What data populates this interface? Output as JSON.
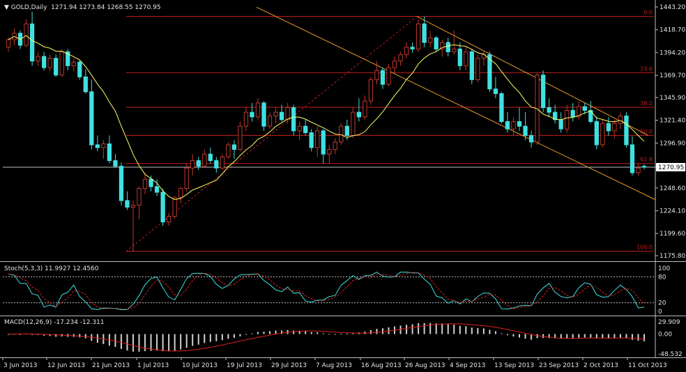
{
  "header": {
    "symbol": "GOLD,Daily",
    "ohlc": "1271.94 1273.84 1268.55 1270.95",
    "stoch_label": "Stoch(5,3,3) 11.9927 12.4560",
    "macd_label": "MACD(12,26,9) -17.234 -12.311"
  },
  "colors": {
    "background": "#000000",
    "bull_candle": "#000000",
    "bull_outline": "#c0392b",
    "bear_candle": "#40e0e0",
    "ma_line": "#ffff66",
    "fib": "#c81e1e",
    "channel": "#e69b2d",
    "stoch_main": "#40e0e0",
    "stoch_signal": "#e02020",
    "macd_hist": "#d0d0d0",
    "macd_signal": "#e02020"
  },
  "chart_data": [
    {
      "type": "candlestick",
      "name": "GOLD,Daily",
      "current_price": "1270.95",
      "ylim": [
        1175.8,
        1443.2
      ],
      "y_ticks": [
        "1443.20",
        "1418.70",
        "1394.20",
        "1369.70",
        "1345.90",
        "1321.40",
        "1296.90",
        "1270.95",
        "1248.60",
        "1224.10",
        "1199.60",
        "1175.80"
      ],
      "x_ticks": [
        "3 Jun 2013",
        "12 Jun 2013",
        "21 Jun 2013",
        "1 Jul 2013",
        "10 Jul 2013",
        "19 Jul 2013",
        "29 Jul 2013",
        "7 Aug 2013",
        "16 Aug 2013",
        "26 Aug 2013",
        "4 Sep 2013",
        "13 Sep 2013",
        "23 Sep 2013",
        "2 Oct 2013",
        "11 Oct 2013"
      ],
      "fibonacci": [
        {
          "label": "0.0",
          "price": 1433.0
        },
        {
          "label": "23.6",
          "price": 1372.6
        },
        {
          "label": "38.2",
          "price": 1335.3
        },
        {
          "label": "50.0",
          "price": 1305.1
        },
        {
          "label": "61.8",
          "price": 1274.9
        },
        {
          "label": "100.0",
          "price": 1180.5
        }
      ],
      "candles": [
        [
          1400,
          1410,
          1395,
          1408
        ],
        [
          1408,
          1420,
          1402,
          1415
        ],
        [
          1415,
          1418,
          1398,
          1402
        ],
        [
          1402,
          1430,
          1400,
          1425
        ],
        [
          1425,
          1438,
          1380,
          1385
        ],
        [
          1385,
          1395,
          1380,
          1390
        ],
        [
          1390,
          1395,
          1375,
          1378
        ],
        [
          1378,
          1392,
          1374,
          1388
        ],
        [
          1388,
          1392,
          1368,
          1370
        ],
        [
          1370,
          1398,
          1368,
          1395
        ],
        [
          1395,
          1398,
          1375,
          1380
        ],
        [
          1380,
          1388,
          1374,
          1384
        ],
        [
          1384,
          1386,
          1365,
          1368
        ],
        [
          1368,
          1376,
          1350,
          1352
        ],
        [
          1352,
          1365,
          1290,
          1295
        ],
        [
          1295,
          1305,
          1288,
          1292
        ],
        [
          1292,
          1300,
          1280,
          1296
        ],
        [
          1296,
          1305,
          1275,
          1278
        ],
        [
          1278,
          1285,
          1270,
          1272
        ],
        [
          1272,
          1276,
          1230,
          1235
        ],
        [
          1235,
          1245,
          1225,
          1228
        ],
        [
          1228,
          1235,
          1180,
          1230
        ],
        [
          1230,
          1250,
          1215,
          1248
        ],
        [
          1248,
          1265,
          1242,
          1258
        ],
        [
          1258,
          1262,
          1245,
          1250
        ],
        [
          1250,
          1258,
          1240,
          1244
        ],
        [
          1244,
          1248,
          1208,
          1212
        ],
        [
          1212,
          1222,
          1208,
          1218
        ],
        [
          1218,
          1240,
          1215,
          1238
        ],
        [
          1238,
          1250,
          1232,
          1248
        ],
        [
          1248,
          1275,
          1245,
          1270
        ],
        [
          1270,
          1285,
          1262,
          1278
        ],
        [
          1278,
          1282,
          1268,
          1272
        ],
        [
          1272,
          1290,
          1270,
          1285
        ],
        [
          1285,
          1292,
          1275,
          1278
        ],
        [
          1278,
          1282,
          1265,
          1270
        ],
        [
          1270,
          1285,
          1268,
          1282
        ],
        [
          1282,
          1298,
          1280,
          1295
        ],
        [
          1295,
          1300,
          1280,
          1290
        ],
        [
          1290,
          1320,
          1288,
          1315
        ],
        [
          1315,
          1335,
          1310,
          1330
        ],
        [
          1330,
          1340,
          1320,
          1325
        ],
        [
          1325,
          1345,
          1322,
          1340
        ],
        [
          1340,
          1342,
          1310,
          1315
        ],
        [
          1315,
          1330,
          1312,
          1326
        ],
        [
          1326,
          1335,
          1318,
          1330
        ],
        [
          1330,
          1338,
          1320,
          1322
        ],
        [
          1322,
          1340,
          1318,
          1335
        ],
        [
          1335,
          1338,
          1305,
          1310
        ],
        [
          1310,
          1320,
          1300,
          1315
        ],
        [
          1315,
          1322,
          1305,
          1308
        ],
        [
          1308,
          1312,
          1288,
          1292
        ],
        [
          1292,
          1315,
          1282,
          1310
        ],
        [
          1310,
          1312,
          1275,
          1285
        ],
        [
          1285,
          1295,
          1275,
          1290
        ],
        [
          1290,
          1302,
          1285,
          1298
        ],
        [
          1298,
          1318,
          1295,
          1315
        ],
        [
          1315,
          1322,
          1300,
          1305
        ],
        [
          1305,
          1335,
          1302,
          1330
        ],
        [
          1330,
          1345,
          1320,
          1325
        ],
        [
          1325,
          1348,
          1322,
          1342
        ],
        [
          1342,
          1368,
          1338,
          1365
        ],
        [
          1365,
          1385,
          1360,
          1375
        ],
        [
          1375,
          1378,
          1355,
          1360
        ],
        [
          1360,
          1382,
          1358,
          1378
        ],
        [
          1378,
          1390,
          1372,
          1385
        ],
        [
          1385,
          1395,
          1380,
          1392
        ],
        [
          1392,
          1405,
          1388,
          1400
        ],
        [
          1400,
          1405,
          1394,
          1398
        ],
        [
          1398,
          1430,
          1395,
          1425
        ],
        [
          1425,
          1433,
          1400,
          1405
        ],
        [
          1405,
          1418,
          1400,
          1410
        ],
        [
          1410,
          1412,
          1395,
          1398
        ],
        [
          1398,
          1408,
          1390,
          1405
        ],
        [
          1405,
          1410,
          1390,
          1395
        ],
        [
          1395,
          1418,
          1392,
          1398
        ],
        [
          1398,
          1405,
          1375,
          1380
        ],
        [
          1380,
          1400,
          1375,
          1395
        ],
        [
          1395,
          1398,
          1360,
          1365
        ],
        [
          1365,
          1392,
          1362,
          1388
        ],
        [
          1388,
          1395,
          1380,
          1392
        ],
        [
          1392,
          1395,
          1352,
          1355
        ],
        [
          1355,
          1368,
          1345,
          1350
        ],
        [
          1350,
          1352,
          1318,
          1320
        ],
        [
          1320,
          1330,
          1308,
          1312
        ],
        [
          1312,
          1325,
          1305,
          1320
        ],
        [
          1320,
          1335,
          1310,
          1315
        ],
        [
          1315,
          1330,
          1300,
          1305
        ],
        [
          1305,
          1310,
          1292,
          1298
        ],
        [
          1298,
          1372,
          1295,
          1370
        ],
        [
          1370,
          1375,
          1330,
          1335
        ],
        [
          1335,
          1345,
          1325,
          1330
        ],
        [
          1330,
          1338,
          1318,
          1322
        ],
        [
          1322,
          1330,
          1308,
          1312
        ],
        [
          1312,
          1338,
          1308,
          1332
        ],
        [
          1332,
          1340,
          1320,
          1325
        ],
        [
          1325,
          1342,
          1322,
          1336
        ],
        [
          1336,
          1340,
          1328,
          1332
        ],
        [
          1332,
          1342,
          1318,
          1320
        ],
        [
          1320,
          1325,
          1290,
          1295
        ],
        [
          1295,
          1322,
          1292,
          1318
        ],
        [
          1318,
          1325,
          1305,
          1310
        ],
        [
          1310,
          1322,
          1302,
          1318
        ],
        [
          1318,
          1330,
          1312,
          1326
        ],
        [
          1326,
          1330,
          1292,
          1295
        ],
        [
          1295,
          1304,
          1262,
          1265
        ],
        [
          1265,
          1275,
          1262,
          1270
        ],
        [
          1271.94,
          1273.84,
          1268.55,
          1270.95
        ]
      ]
    },
    {
      "type": "line",
      "name": "Stoch(5,3,3)",
      "ylim": [
        0,
        100
      ],
      "y_ticks": [
        "100",
        "80",
        "20",
        "0"
      ],
      "levels": [
        80,
        20
      ]
    },
    {
      "type": "bar",
      "name": "MACD(12,26,9)",
      "y_ticks": [
        "29.909",
        "0.00",
        "-48.532"
      ],
      "ylim": [
        -48.532,
        29.909
      ]
    }
  ]
}
